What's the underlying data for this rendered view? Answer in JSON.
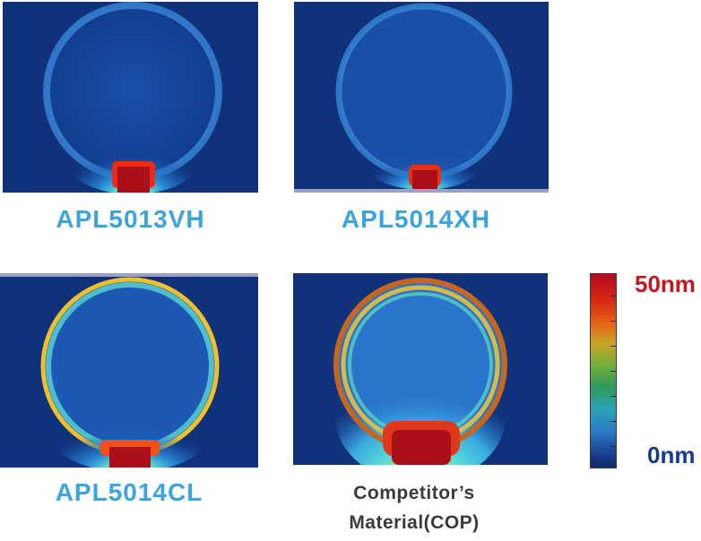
{
  "panels": [
    {
      "id": "apl5013vh",
      "label": "APL5013VH"
    },
    {
      "id": "apl5014xh",
      "label": "APL5014XH"
    },
    {
      "id": "apl5014cl",
      "label": "APL5014CL"
    },
    {
      "id": "competitor",
      "label_line1": "Competitor’s",
      "label_line2": "Material(COP)"
    }
  ],
  "color_scale": {
    "max_label": "50nm",
    "min_label": "0nm",
    "max_color": "#c8161d",
    "min_color": "#1a3a8c"
  }
}
